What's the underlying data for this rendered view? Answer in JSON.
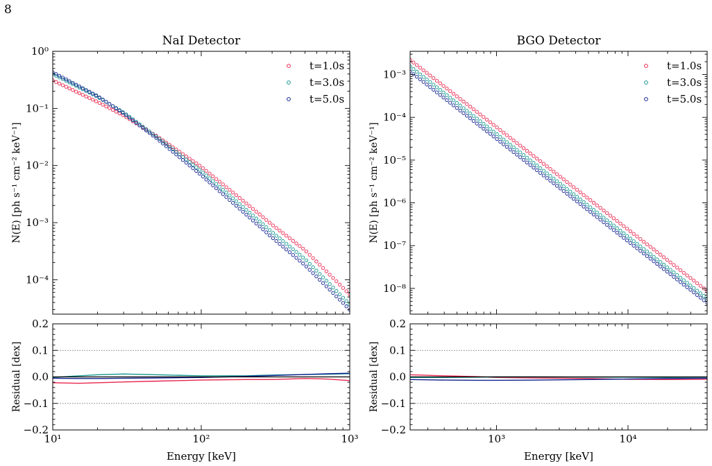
{
  "page_number": "8",
  "colors": {
    "t1": "#e8254d",
    "t3": "#13958f",
    "t5": "#0f1f8f"
  },
  "chart_data": [
    {
      "id": "nai-spectrum",
      "type": "scatter",
      "title": "NaI Detector",
      "ylabel": "N(E) [ph s⁻¹ cm⁻² keV⁻¹]",
      "xlabel": "",
      "xscale": "log",
      "yscale": "log",
      "xlim": [
        10,
        1000
      ],
      "ylim": [
        2.5e-05,
        1.0
      ],
      "xticks": [
        {
          "value": 10,
          "label": "10¹"
        },
        {
          "value": 100,
          "label": "10²"
        },
        {
          "value": 1000,
          "label": "10³"
        }
      ],
      "yticks": [
        {
          "value": 0.0001,
          "label": "10⁻⁴"
        },
        {
          "value": 0.001,
          "label": "10⁻³"
        },
        {
          "value": 0.01,
          "label": "10⁻²"
        },
        {
          "value": 0.1,
          "label": "10⁻¹"
        },
        {
          "value": 1,
          "label": "10⁰"
        }
      ],
      "legend_position": "top-right",
      "series": [
        {
          "name": "t=1.0s",
          "color": "#e8254d",
          "x": [
            10,
            20,
            30,
            50,
            100,
            200,
            300,
            500,
            1000
          ],
          "y": [
            0.31,
            0.13,
            0.075,
            0.033,
            0.0095,
            0.0022,
            0.00092,
            0.00033,
            5.5e-05
          ]
        },
        {
          "name": "t=3.0s",
          "color": "#13958f",
          "x": [
            10,
            20,
            30,
            50,
            100,
            200,
            300,
            500,
            1000
          ],
          "y": [
            0.4,
            0.16,
            0.085,
            0.032,
            0.008,
            0.0017,
            0.00068,
            0.00023,
            3.7e-05
          ]
        },
        {
          "name": "t=5.0s",
          "color": "#0f1f8f",
          "x": [
            10,
            20,
            30,
            50,
            100,
            200,
            300,
            500,
            1000
          ],
          "y": [
            0.43,
            0.165,
            0.082,
            0.03,
            0.0068,
            0.0014,
            0.00055,
            0.00018,
            3e-05
          ]
        }
      ]
    },
    {
      "id": "nai-residual",
      "type": "line",
      "title": "",
      "ylabel": "Residual [dex]",
      "xlabel": "Energy [keV]",
      "xscale": "log",
      "yscale": "linear",
      "xlim": [
        10,
        1000
      ],
      "ylim": [
        -0.2,
        0.2
      ],
      "grid_lines_y": [
        -0.1,
        0.1
      ],
      "xticks": [
        {
          "value": 10,
          "label": "10¹"
        },
        {
          "value": 100,
          "label": "10²"
        },
        {
          "value": 1000,
          "label": "10³"
        }
      ],
      "yticks": [
        {
          "value": -0.2,
          "label": "−0.2"
        },
        {
          "value": -0.1,
          "label": "−0.1"
        },
        {
          "value": 0.0,
          "label": "0.0"
        },
        {
          "value": 0.1,
          "label": "0.1"
        },
        {
          "value": 0.2,
          "label": "0.2"
        }
      ],
      "series": [
        {
          "name": "t=1.0s",
          "color": "#e8254d",
          "x": [
            10,
            15,
            20,
            30,
            50,
            100,
            200,
            300,
            500,
            700,
            1000
          ],
          "y": [
            -0.022,
            -0.024,
            -0.022,
            -0.019,
            -0.016,
            -0.012,
            -0.01,
            -0.01,
            -0.006,
            -0.008,
            -0.014
          ]
        },
        {
          "name": "t=3.0s",
          "color": "#13958f",
          "x": [
            10,
            15,
            20,
            30,
            50,
            100,
            200,
            300,
            500,
            700,
            1000
          ],
          "y": [
            -0.002,
            0.004,
            0.008,
            0.011,
            0.008,
            0.004,
            0.004,
            0.007,
            0.009,
            0.01,
            0.012
          ]
        },
        {
          "name": "t=5.0s",
          "color": "#0f1f8f",
          "x": [
            10,
            15,
            20,
            30,
            50,
            100,
            200,
            300,
            500,
            700,
            1000
          ],
          "y": [
            -0.005,
            -0.006,
            -0.006,
            -0.005,
            -0.004,
            -0.002,
            0.002,
            0.005,
            0.009,
            0.012,
            0.014
          ]
        },
        {
          "name": "",
          "color": "#000000",
          "x": [
            10,
            1000
          ],
          "y": [
            0.0,
            0.0
          ]
        }
      ]
    },
    {
      "id": "bgo-spectrum",
      "type": "scatter",
      "title": "BGO Detector",
      "ylabel": "N(E) [ph s⁻¹ cm⁻² keV⁻¹]",
      "xlabel": "",
      "xscale": "log",
      "yscale": "log",
      "xlim": [
        220,
        40000
      ],
      "ylim": [
        2.5e-09,
        0.0035
      ],
      "xticks": [
        {
          "value": 1000,
          "label": "10³"
        },
        {
          "value": 10000,
          "label": "10⁴"
        }
      ],
      "yticks": [
        {
          "value": 1e-08,
          "label": "10⁻⁸"
        },
        {
          "value": 1e-07,
          "label": "10⁻⁷"
        },
        {
          "value": 1e-06,
          "label": "10⁻⁶"
        },
        {
          "value": 1e-05,
          "label": "10⁻⁵"
        },
        {
          "value": 0.0001,
          "label": "10⁻⁴"
        },
        {
          "value": 0.001,
          "label": "10⁻³"
        }
      ],
      "legend_position": "top-right",
      "series": [
        {
          "name": "t=1.0s",
          "color": "#e8254d",
          "x": [
            220,
            40000
          ],
          "y": [
            0.0022,
            8.7e-09
          ]
        },
        {
          "name": "t=3.0s",
          "color": "#13958f",
          "x": [
            220,
            40000
          ],
          "y": [
            0.00155,
            5.8e-09
          ]
        },
        {
          "name": "t=5.0s",
          "color": "#0f1f8f",
          "x": [
            220,
            40000
          ],
          "y": [
            0.00118,
            4.6e-09
          ]
        }
      ]
    },
    {
      "id": "bgo-residual",
      "type": "line",
      "title": "",
      "ylabel": "Residual [dex]",
      "xlabel": "Energy [keV]",
      "xscale": "log",
      "yscale": "linear",
      "xlim": [
        220,
        40000
      ],
      "ylim": [
        -0.2,
        0.2
      ],
      "grid_lines_y": [
        -0.1,
        0.1
      ],
      "xticks": [
        {
          "value": 1000,
          "label": "10³"
        },
        {
          "value": 10000,
          "label": "10⁴"
        }
      ],
      "yticks": [
        {
          "value": -0.2,
          "label": "−0.2"
        },
        {
          "value": -0.1,
          "label": "−0.1"
        },
        {
          "value": 0.0,
          "label": "0.0"
        },
        {
          "value": 0.1,
          "label": "0.1"
        },
        {
          "value": 0.2,
          "label": "0.2"
        }
      ],
      "series": [
        {
          "name": "t=1.0s",
          "color": "#e8254d",
          "x": [
            220,
            400,
            700,
            1000,
            2000,
            5000,
            10000,
            20000,
            40000
          ],
          "y": [
            0.008,
            0.004,
            0.001,
            -0.002,
            -0.004,
            -0.006,
            -0.009,
            -0.01,
            -0.009
          ]
        },
        {
          "name": "t=3.0s",
          "color": "#13958f",
          "x": [
            220,
            400,
            700,
            1000,
            2000,
            5000,
            10000,
            20000,
            40000
          ],
          "y": [
            -0.002,
            -0.002,
            -0.001,
            0.0,
            0.0,
            -0.001,
            -0.001,
            -0.002,
            -0.001
          ]
        },
        {
          "name": "t=5.0s",
          "color": "#0f1f8f",
          "x": [
            220,
            400,
            700,
            1000,
            2000,
            5000,
            10000,
            20000,
            40000
          ],
          "y": [
            -0.01,
            -0.012,
            -0.013,
            -0.013,
            -0.012,
            -0.01,
            -0.008,
            -0.006,
            -0.005
          ]
        },
        {
          "name": "",
          "color": "#000000",
          "x": [
            220,
            40000
          ],
          "y": [
            0.0,
            0.0
          ]
        }
      ]
    }
  ]
}
